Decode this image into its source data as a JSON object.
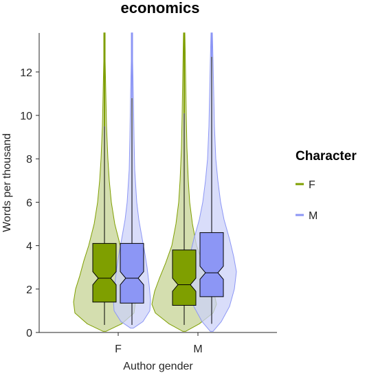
{
  "chart_data": {
    "type": "violin",
    "title": "economics",
    "xlabel": "Author gender",
    "ylabel": "Words per thousand",
    "categories": [
      "F",
      "M"
    ],
    "ylim": [
      0,
      13.8
    ],
    "yticks": [
      0,
      2,
      4,
      6,
      8,
      10,
      12
    ],
    "legend": {
      "title": "Character",
      "position": "right"
    },
    "series": [
      {
        "name": "F",
        "color": "#7f9f00",
        "fill": "#c6d394",
        "box": [
          {
            "category": "F",
            "whisker_low": 0.35,
            "q1": 1.4,
            "median": 2.5,
            "q3": 4.1,
            "whisker_high": 9.5,
            "max": 13.8
          },
          {
            "category": "M",
            "whisker_low": 0.35,
            "q1": 1.25,
            "median": 2.2,
            "q3": 3.8,
            "whisker_high": 10.1,
            "max": 13.8
          }
        ]
      },
      {
        "name": "M",
        "color": "#8c96f5",
        "fill": "#ccd1f8",
        "box": [
          {
            "category": "F",
            "whisker_low": 0.35,
            "q1": 1.35,
            "median": 2.5,
            "q3": 4.1,
            "whisker_high": 10.8,
            "max": 13.8
          },
          {
            "category": "M",
            "whisker_low": 0.4,
            "q1": 1.65,
            "median": 2.75,
            "q3": 4.6,
            "whisker_high": 12.7,
            "max": 13.8
          }
        ]
      }
    ]
  }
}
